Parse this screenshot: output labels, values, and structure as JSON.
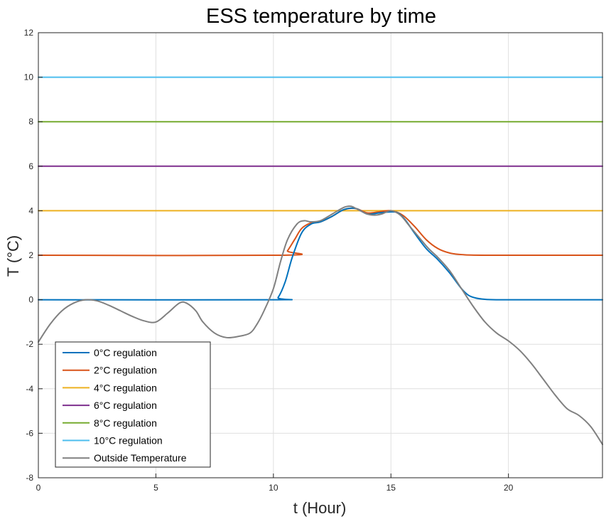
{
  "chart_data": {
    "type": "line",
    "title": "ESS temperature by time",
    "xlabel": "t (Hour)",
    "ylabel": "T (°C)",
    "xlim": [
      0,
      24
    ],
    "ylim": [
      -8,
      12
    ],
    "xticks": [
      0,
      5,
      10,
      15,
      20
    ],
    "yticks": [
      -8,
      -6,
      -4,
      -2,
      0,
      2,
      4,
      6,
      8,
      10,
      12
    ],
    "grid": true,
    "legend_position": "bottom-left",
    "series": [
      {
        "name": "0°C regulation",
        "color": "#0072BD",
        "x": [
          0,
          10.0,
          10.2,
          10.5,
          10.8,
          11.2,
          11.6,
          12.0,
          12.5,
          13.0,
          13.5,
          14.0,
          14.5,
          15.0,
          15.3,
          15.6,
          16.0,
          16.5,
          17.0,
          17.5,
          18.0,
          18.3,
          18.6,
          19.0,
          19.5,
          20,
          24
        ],
        "y": [
          0,
          0,
          0.1,
          0.8,
          1.9,
          3.0,
          3.4,
          3.5,
          3.75,
          4.05,
          4.1,
          3.85,
          3.9,
          3.95,
          3.9,
          3.6,
          3.0,
          2.3,
          1.8,
          1.2,
          0.5,
          0.2,
          0.08,
          0.02,
          0,
          0,
          0
        ]
      },
      {
        "name": "2°C regulation",
        "color": "#D95319",
        "x": [
          0,
          10.4,
          10.6,
          10.9,
          11.2,
          11.6,
          12.0,
          12.5,
          13.0,
          13.5,
          14.0,
          14.5,
          15.0,
          15.5,
          16.0,
          16.5,
          17.0,
          17.5,
          18.0,
          19.0,
          24
        ],
        "y": [
          2,
          2,
          2.2,
          2.7,
          3.2,
          3.45,
          3.5,
          3.75,
          4.05,
          4.1,
          3.9,
          3.95,
          4.0,
          3.8,
          3.3,
          2.7,
          2.3,
          2.1,
          2.03,
          2.0,
          2.0
        ]
      },
      {
        "name": "4°C regulation",
        "color": "#EDB120",
        "x": [
          0,
          24
        ],
        "y": [
          4,
          4
        ]
      },
      {
        "name": "6°C regulation",
        "color": "#7E2F8E",
        "x": [
          0,
          24
        ],
        "y": [
          6,
          6
        ]
      },
      {
        "name": "8°C regulation",
        "color": "#77AC30",
        "x": [
          0,
          24
        ],
        "y": [
          8,
          8
        ]
      },
      {
        "name": "10°C regulation",
        "color": "#4DBEEE",
        "x": [
          0,
          24
        ],
        "y": [
          10,
          10
        ]
      },
      {
        "name": "Outside Temperature",
        "color": "#808080",
        "x": [
          0,
          0.5,
          1.0,
          1.5,
          2.0,
          2.5,
          3.0,
          3.5,
          4.0,
          4.5,
          5.0,
          5.5,
          6.0,
          6.3,
          6.7,
          7.0,
          7.5,
          8.0,
          8.5,
          9.0,
          9.3,
          9.6,
          10.0,
          10.3,
          10.6,
          11.0,
          11.3,
          11.6,
          12.0,
          12.5,
          13.0,
          13.3,
          13.6,
          14.0,
          14.3,
          14.6,
          15.0,
          15.4,
          15.8,
          16.2,
          16.6,
          17.0,
          17.5,
          18.0,
          18.5,
          19.0,
          19.5,
          20.0,
          20.5,
          21.0,
          21.5,
          22.0,
          22.5,
          23.0,
          23.5,
          24.0
        ],
        "y": [
          -1.9,
          -1.1,
          -0.5,
          -0.15,
          0,
          -0.05,
          -0.25,
          -0.5,
          -0.75,
          -0.95,
          -1.0,
          -0.6,
          -0.15,
          -0.15,
          -0.5,
          -1.0,
          -1.5,
          -1.7,
          -1.65,
          -1.5,
          -1.1,
          -0.5,
          0.5,
          1.7,
          2.7,
          3.4,
          3.55,
          3.5,
          3.55,
          3.85,
          4.15,
          4.2,
          4.05,
          3.85,
          3.8,
          3.85,
          4.0,
          3.8,
          3.3,
          2.8,
          2.3,
          1.9,
          1.3,
          0.5,
          -0.3,
          -1.0,
          -1.5,
          -1.85,
          -2.3,
          -2.9,
          -3.6,
          -4.3,
          -4.9,
          -5.2,
          -5.7,
          -6.5
        ]
      }
    ]
  }
}
